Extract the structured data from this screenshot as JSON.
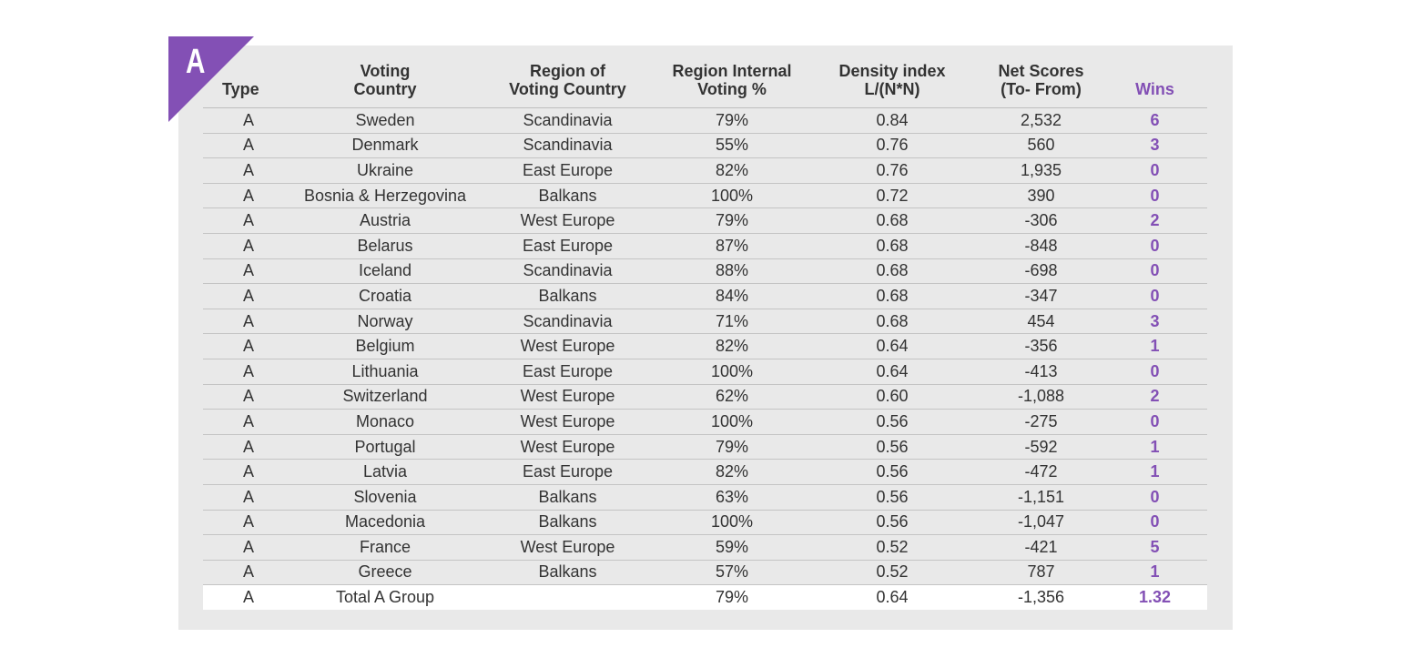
{
  "badge": {
    "label": "A",
    "color": "#8350b5"
  },
  "chart_data": {
    "type": "table",
    "columns": [
      {
        "key": "type",
        "header": "Type"
      },
      {
        "key": "country",
        "header": "Voting\nCountry"
      },
      {
        "key": "region",
        "header": "Region of\nVoting Country"
      },
      {
        "key": "internal",
        "header": "Region Internal\nVoting %"
      },
      {
        "key": "density",
        "header": "Density index\nL/(N*N)"
      },
      {
        "key": "net",
        "header": "Net Scores\n(To- From)"
      },
      {
        "key": "wins",
        "header": "Wins"
      }
    ],
    "rows": [
      {
        "type": "A",
        "country": "Sweden",
        "region": "Scandinavia",
        "internal": "79%",
        "density": "0.84",
        "net": "2,532",
        "wins": "6"
      },
      {
        "type": "A",
        "country": "Denmark",
        "region": "Scandinavia",
        "internal": "55%",
        "density": "0.76",
        "net": "560",
        "wins": "3"
      },
      {
        "type": "A",
        "country": "Ukraine",
        "region": "East Europe",
        "internal": "82%",
        "density": "0.76",
        "net": "1,935",
        "wins": "0"
      },
      {
        "type": "A",
        "country": "Bosnia & Herzegovina",
        "region": "Balkans",
        "internal": "100%",
        "density": "0.72",
        "net": "390",
        "wins": "0"
      },
      {
        "type": "A",
        "country": "Austria",
        "region": "West Europe",
        "internal": "79%",
        "density": "0.68",
        "net": "-306",
        "wins": "2"
      },
      {
        "type": "A",
        "country": "Belarus",
        "region": "East Europe",
        "internal": "87%",
        "density": "0.68",
        "net": "-848",
        "wins": "0"
      },
      {
        "type": "A",
        "country": "Iceland",
        "region": "Scandinavia",
        "internal": "88%",
        "density": "0.68",
        "net": "-698",
        "wins": "0"
      },
      {
        "type": "A",
        "country": "Croatia",
        "region": "Balkans",
        "internal": "84%",
        "density": "0.68",
        "net": "-347",
        "wins": "0"
      },
      {
        "type": "A",
        "country": "Norway",
        "region": "Scandinavia",
        "internal": "71%",
        "density": "0.68",
        "net": "454",
        "wins": "3"
      },
      {
        "type": "A",
        "country": "Belgium",
        "region": "West Europe",
        "internal": "82%",
        "density": "0.64",
        "net": "-356",
        "wins": "1"
      },
      {
        "type": "A",
        "country": "Lithuania",
        "region": "East Europe",
        "internal": "100%",
        "density": "0.64",
        "net": "-413",
        "wins": "0"
      },
      {
        "type": "A",
        "country": "Switzerland",
        "region": "West Europe",
        "internal": "62%",
        "density": "0.60",
        "net": "-1,088",
        "wins": "2"
      },
      {
        "type": "A",
        "country": "Monaco",
        "region": "West Europe",
        "internal": "100%",
        "density": "0.56",
        "net": "-275",
        "wins": "0"
      },
      {
        "type": "A",
        "country": "Portugal",
        "region": "West Europe",
        "internal": "79%",
        "density": "0.56",
        "net": "-592",
        "wins": "1"
      },
      {
        "type": "A",
        "country": "Latvia",
        "region": "East Europe",
        "internal": "82%",
        "density": "0.56",
        "net": "-472",
        "wins": "1"
      },
      {
        "type": "A",
        "country": "Slovenia",
        "region": "Balkans",
        "internal": "63%",
        "density": "0.56",
        "net": "-1,151",
        "wins": "0"
      },
      {
        "type": "A",
        "country": "Macedonia",
        "region": "Balkans",
        "internal": "100%",
        "density": "0.56",
        "net": "-1,047",
        "wins": "0"
      },
      {
        "type": "A",
        "country": "France",
        "region": "West Europe",
        "internal": "59%",
        "density": "0.52",
        "net": "-421",
        "wins": "5"
      },
      {
        "type": "A",
        "country": "Greece",
        "region": "Balkans",
        "internal": "57%",
        "density": "0.52",
        "net": "787",
        "wins": "1"
      }
    ],
    "total": {
      "type": "A",
      "country": "Total A Group",
      "region": "",
      "internal": "79%",
      "density": "0.64",
      "net": "-1,356",
      "wins": "1.32"
    }
  }
}
